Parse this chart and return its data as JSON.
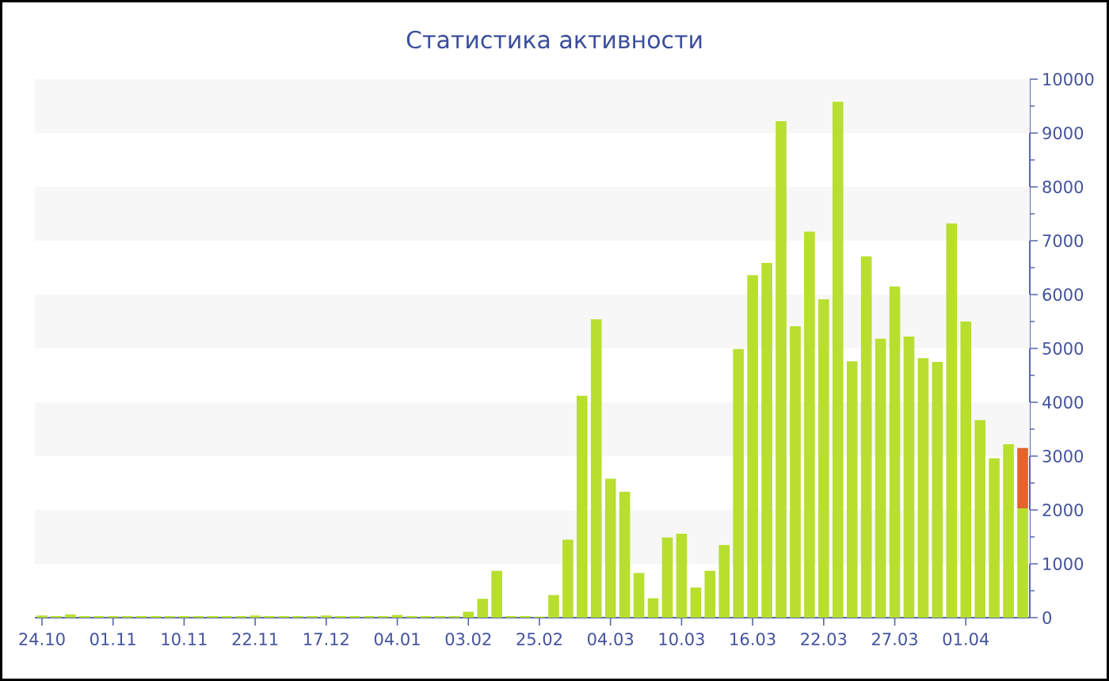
{
  "chart_data": {
    "type": "bar",
    "title": "Статистика активности",
    "categories": [
      "24.10",
      null,
      null,
      null,
      null,
      "01.11",
      null,
      null,
      null,
      null,
      "10.11",
      null,
      null,
      null,
      null,
      "22.11",
      null,
      null,
      null,
      null,
      "17.12",
      null,
      null,
      null,
      null,
      "04.01",
      null,
      null,
      null,
      null,
      "03.02",
      null,
      null,
      null,
      null,
      "25.02",
      null,
      null,
      null,
      null,
      "04.03",
      null,
      null,
      null,
      null,
      "10.03",
      null,
      null,
      null,
      null,
      "16.03",
      null,
      null,
      null,
      null,
      "22.03",
      null,
      null,
      null,
      null,
      "27.03",
      null,
      null,
      null,
      null,
      "01.04",
      null,
      null,
      null,
      null
    ],
    "series": [
      {
        "color": "#b8df2f",
        "values": [
          40,
          30,
          60,
          30,
          30,
          30,
          30,
          30,
          30,
          30,
          30,
          30,
          30,
          30,
          30,
          40,
          30,
          30,
          30,
          30,
          40,
          30,
          30,
          30,
          30,
          50,
          30,
          30,
          30,
          30,
          110,
          350,
          870,
          30,
          30,
          20,
          420,
          1450,
          4120,
          5540,
          2580,
          2340,
          830,
          360,
          1490,
          1560,
          560,
          870,
          1350,
          4990,
          6360,
          6590,
          9220,
          5410,
          7170,
          5910,
          9580,
          4760,
          6710,
          5180,
          6150,
          5220,
          4820,
          4750,
          7320,
          5500,
          3670,
          2960,
          3220,
          2030
        ]
      },
      {
        "color": "#e4632d",
        "values": [
          null,
          null,
          null,
          null,
          null,
          null,
          null,
          null,
          null,
          null,
          null,
          null,
          null,
          null,
          null,
          null,
          null,
          null,
          null,
          null,
          null,
          null,
          null,
          null,
          null,
          null,
          null,
          null,
          null,
          null,
          null,
          null,
          null,
          null,
          null,
          null,
          null,
          null,
          null,
          null,
          null,
          null,
          null,
          null,
          null,
          null,
          null,
          null,
          null,
          null,
          null,
          null,
          null,
          null,
          null,
          null,
          null,
          null,
          null,
          null,
          null,
          null,
          null,
          null,
          null,
          null,
          null,
          null,
          null,
          1120
        ]
      }
    ],
    "stacked": true,
    "ylim": [
      0,
      10000
    ],
    "yticks": [
      0,
      1000,
      2000,
      3000,
      4000,
      5000,
      6000,
      7000,
      8000,
      9000,
      10000
    ],
    "bands": [
      {
        "axis": "y",
        "from": 1000,
        "to": 2000,
        "color": "#f7f7f7"
      },
      {
        "axis": "y",
        "from": 3000,
        "to": 4000,
        "color": "#f7f7f7"
      },
      {
        "axis": "y",
        "from": 5000,
        "to": 6000,
        "color": "#f7f7f7"
      },
      {
        "axis": "y",
        "from": 7000,
        "to": 8000,
        "color": "#f7f7f7"
      },
      {
        "axis": "y",
        "from": 9000,
        "to": 10000,
        "color": "#f7f7f7"
      }
    ]
  }
}
